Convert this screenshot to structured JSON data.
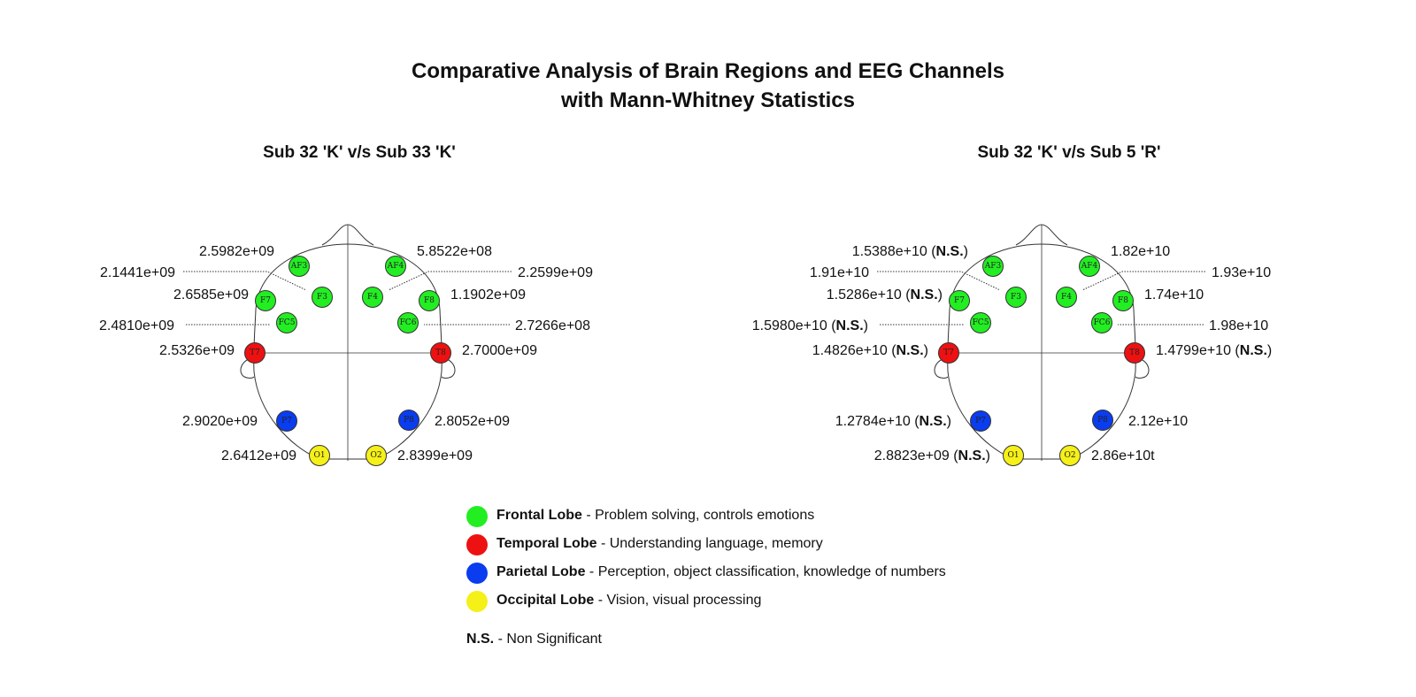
{
  "title_line1": "Comparative Analysis of Brain Regions and EEG Channels",
  "title_line2": "with Mann-Whitney Statistics",
  "colors": {
    "frontal": "#22ee22",
    "temporal": "#ee1111",
    "parietal": "#0a3cf0",
    "occipital": "#f5f018"
  },
  "channels": [
    {
      "id": "AF3",
      "lobe": "frontal"
    },
    {
      "id": "AF4",
      "lobe": "frontal"
    },
    {
      "id": "F3",
      "lobe": "frontal"
    },
    {
      "id": "F4",
      "lobe": "frontal"
    },
    {
      "id": "F7",
      "lobe": "frontal"
    },
    {
      "id": "F8",
      "lobe": "frontal"
    },
    {
      "id": "FC5",
      "lobe": "frontal"
    },
    {
      "id": "FC6",
      "lobe": "frontal"
    },
    {
      "id": "T7",
      "lobe": "temporal"
    },
    {
      "id": "T8",
      "lobe": "temporal"
    },
    {
      "id": "P7",
      "lobe": "parietal"
    },
    {
      "id": "P8",
      "lobe": "parietal"
    },
    {
      "id": "O1",
      "lobe": "occipital"
    },
    {
      "id": "O2",
      "lobe": "occipital"
    }
  ],
  "panels": [
    {
      "title": "Sub 32 'K' v/s Sub 33 'K'",
      "values": {
        "AF3": {
          "text": "2.5982e+09",
          "ns": ""
        },
        "AF4": {
          "text": "5.8522e+08",
          "ns": ""
        },
        "F3": {
          "text": "2.1441e+09",
          "ns": ""
        },
        "F4": {
          "text": "2.2599e+09",
          "ns": ""
        },
        "F7": {
          "text": "2.6585e+09",
          "ns": ""
        },
        "F8": {
          "text": "1.1902e+09",
          "ns": ""
        },
        "FC5": {
          "text": "2.4810e+09",
          "ns": ""
        },
        "FC6": {
          "text": "2.7266e+08",
          "ns": ""
        },
        "T7": {
          "text": "2.5326e+09",
          "ns": ""
        },
        "T8": {
          "text": "2.7000e+09",
          "ns": ""
        },
        "P7": {
          "text": "2.9020e+09",
          "ns": ""
        },
        "P8": {
          "text": "2.8052e+09",
          "ns": ""
        },
        "O1": {
          "text": "2.6412e+09",
          "ns": ""
        },
        "O2": {
          "text": "2.8399e+09",
          "ns": ""
        }
      }
    },
    {
      "title": "Sub 32 'K' v/s Sub 5 'R'",
      "values": {
        "AF3": {
          "text": "1.5388e+10",
          "ns": "N.S."
        },
        "AF4": {
          "text": "1.82e+10",
          "ns": ""
        },
        "F3": {
          "text": "1.91e+10",
          "ns": ""
        },
        "F4": {
          "text": "1.93e+10",
          "ns": ""
        },
        "F7": {
          "text": "1.5286e+10",
          "ns": "N.S."
        },
        "F8": {
          "text": "1.74e+10",
          "ns": ""
        },
        "FC5": {
          "text": "1.5980e+10",
          "ns": "N.S."
        },
        "FC6": {
          "text": "1.98e+10",
          "ns": ""
        },
        "T7": {
          "text": "1.4826e+10",
          "ns": "N.S."
        },
        "T8": {
          "text": "1.4799e+10",
          "ns": "N.S."
        },
        "P7": {
          "text": "1.2784e+10",
          "ns": "N.S."
        },
        "P8": {
          "text": "2.12e+10",
          "ns": ""
        },
        "O1": {
          "text": "2.8823e+09",
          "ns": "N.S."
        },
        "O2": {
          "text": "2.86e+10t",
          "ns": ""
        }
      }
    }
  ],
  "legend": [
    {
      "lobe": "frontal",
      "name": "Frontal Lobe",
      "desc": " - Problem solving, controls emotions"
    },
    {
      "lobe": "temporal",
      "name": "Temporal Lobe",
      "desc": " - Understanding language, memory"
    },
    {
      "lobe": "parietal",
      "name": "Parietal Lobe",
      "desc": " - Perception, object classification, knowledge of numbers"
    },
    {
      "lobe": "occipital",
      "name": "Occipital Lobe",
      "desc": " - Vision, visual processing"
    }
  ],
  "ns_note": {
    "abbr": "N.S.",
    "text": " - Non Significant"
  }
}
